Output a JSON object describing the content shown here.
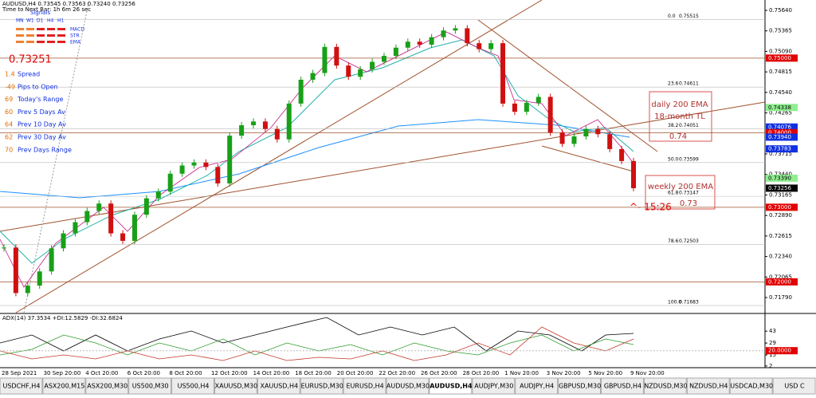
{
  "header": {
    "line1": "AUDUSD,H4  0.73545 0.73563 0.73240 0.73256",
    "line2": "Time to Next Bar: 1h 6m 26 sec"
  },
  "signals": {
    "title": "Signals",
    "timeframes": [
      "MN",
      "W1",
      "D1",
      "H4",
      "H1"
    ],
    "indicators": [
      "MACD",
      "STR",
      "EMA"
    ]
  },
  "info": {
    "price": "0.73251",
    "rows": [
      {
        "num": "1.4",
        "label": "Spread"
      },
      {
        "num": "-49",
        "label": "Pips to Open"
      },
      {
        "num": "69",
        "label": "Today's Range"
      },
      {
        "num": "60",
        "label": "Prev 5 Days Av"
      },
      {
        "num": "64",
        "label": "Prev 10 Day Av"
      },
      {
        "num": "62",
        "label": "Prev 30 Day Av"
      },
      {
        "num": "70",
        "label": "Prev Days Range"
      }
    ]
  },
  "chart": {
    "ylim": [
      0.71587,
      0.75779
    ],
    "yticks": [
      {
        "value": 0.7564,
        "label": "0.75640"
      },
      {
        "value": 0.75365,
        "label": "0.75365"
      },
      {
        "value": 0.7509,
        "label": "0.75090"
      },
      {
        "value": 0.74815,
        "label": "0.74815"
      },
      {
        "value": 0.7454,
        "label": "0.74540"
      },
      {
        "value": 0.74265,
        "label": "0.74265"
      },
      {
        "value": 0.73715,
        "label": "0.73715"
      },
      {
        "value": 0.7344,
        "label": "0.73440"
      },
      {
        "value": 0.73165,
        "label": "0.73165"
      },
      {
        "value": 0.7289,
        "label": "0.72890"
      },
      {
        "value": 0.72615,
        "label": "0.72615"
      },
      {
        "value": 0.7234,
        "label": "0.72340"
      },
      {
        "value": 0.72065,
        "label": "0.72065"
      },
      {
        "value": 0.7179,
        "label": "0.71790"
      }
    ],
    "markers": [
      {
        "value": 0.75,
        "label": "0.75000",
        "color": "#e00000"
      },
      {
        "value": 0.74338,
        "label": "0.74338",
        "color": "#90ee90"
      },
      {
        "value": 0.74076,
        "label": "0.74076",
        "color": "#1030e0"
      },
      {
        "value": 0.74,
        "label": "0.74000",
        "color": "#e00000"
      },
      {
        "value": 0.7394,
        "label": "0.73940",
        "color": "#1030e0"
      },
      {
        "value": 0.73783,
        "label": "0.73783",
        "color": "#1030e0"
      },
      {
        "value": 0.7339,
        "label": "0.73390",
        "color": "#90ee90"
      },
      {
        "value": 0.73256,
        "label": "0.73256",
        "color": "#000000"
      },
      {
        "value": 0.73,
        "label": "0.73000",
        "color": "#e00000"
      },
      {
        "value": 0.72,
        "label": "0.72000",
        "color": "#e00000"
      }
    ],
    "levels": [
      {
        "value": 0.75,
        "label": "0.75000"
      },
      {
        "value": 0.74,
        "label": "0.74000"
      },
      {
        "value": 0.73,
        "label": "0.73000"
      },
      {
        "value": 0.72,
        "label": "0.72000"
      }
    ],
    "fib": [
      {
        "level": "0.0",
        "price": 0.75515
      },
      {
        "level": "23.6",
        "price": 0.74611
      },
      {
        "level": "38.2",
        "price": 0.74051
      },
      {
        "level": "50.0",
        "price": 0.73599
      },
      {
        "level": "61.8",
        "price": 0.73147
      },
      {
        "level": "78.6",
        "price": 0.72503
      },
      {
        "level": "100.0",
        "price": 0.71683
      }
    ],
    "close": [
      0.7246,
      0.7185,
      0.7195,
      0.7214,
      0.7245,
      0.7265,
      0.728,
      0.7295,
      0.7305,
      0.7265,
      0.7255,
      0.729,
      0.7312,
      0.7321,
      0.7345,
      0.7356,
      0.736,
      0.7354,
      0.7332,
      0.7396,
      0.741,
      0.7415,
      0.7405,
      0.7391,
      0.7439,
      0.7471,
      0.748,
      0.7515,
      0.749,
      0.7475,
      0.7485,
      0.7495,
      0.7503,
      0.7514,
      0.7522,
      0.7518,
      0.7528,
      0.7537,
      0.754,
      0.752,
      0.7512,
      0.752,
      0.7439,
      0.7428,
      0.744,
      0.7448,
      0.74,
      0.7385,
      0.7395,
      0.7405,
      0.7398,
      0.7378,
      0.7362,
      0.73256
    ],
    "xlabels": [
      "28 Sep 2021",
      "30 Sep 20:00",
      "4 Oct 20:00",
      "6 Oct 20:00",
      "8 Oct 20:00",
      "12 Oct 20:00",
      "14 Oct 20:00",
      "18 Oct 20:00",
      "20 Oct 20:00",
      "22 Oct 20:00",
      "26 Oct 20:00",
      "28 Oct 20:00",
      "1 Nov 20:00",
      "3 Nov 20:00",
      "5 Nov 20:00",
      "9 Nov 20:00"
    ],
    "annotations": {
      "box1": [
        "daily 200 EMA",
        "18-month TL",
        "0.74"
      ],
      "box2": [
        "weekly 200 EMA",
        "0.73"
      ],
      "time": "^- 15:26"
    }
  },
  "adx": {
    "title": "ADX(14) 37.3534 +DI:12.5829 -DI:32.6824",
    "ylim": [
      0,
      61
    ],
    "yticks": [
      43,
      29,
      15,
      2
    ],
    "level": {
      "value": 20,
      "label": "20.0000"
    }
  },
  "tabs": [
    "USDCHF,H4",
    "ASX200,M15",
    "ASX200,M30",
    "US500,M30",
    "US500,H4",
    "XAUUSD,M30",
    "XAUUSD,H4",
    "EURUSD,M30",
    "EURUSD,H4",
    "AUDUSD,M30",
    "AUDUSD,H4",
    "AUDJPY,M30",
    "AUDJPY,H4",
    "GBPUSD,M30",
    "GBPUSD,H4",
    "NZDUSD,M30",
    "NZDUSD,H4",
    "USDCAD,M30",
    "USD C"
  ],
  "active_tab": 10
}
